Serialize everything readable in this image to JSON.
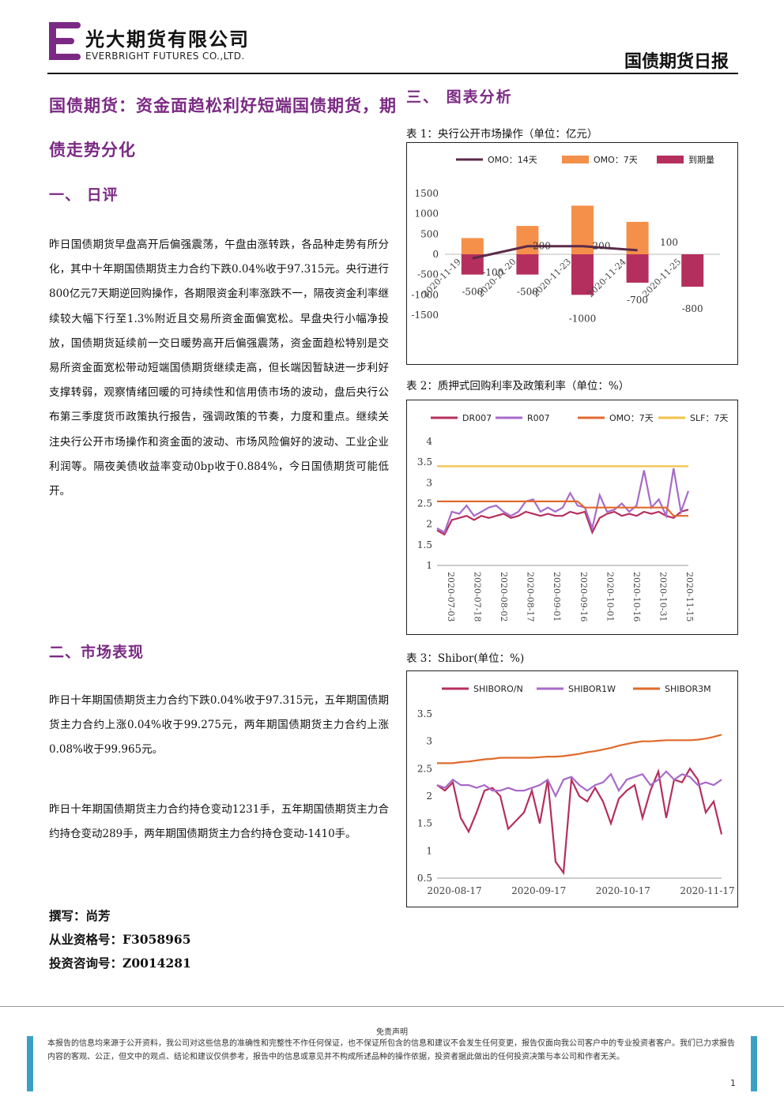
{
  "header": {
    "company_cn": "光大期货有限公司",
    "company_en": "EVERBRIGHT FUTURES CO.,LTD.",
    "report_name": "国债期货日报",
    "logo_name": "everbright-logo"
  },
  "headline": "国债期货：资金面趋松利好短端国债期货，期债走势分化",
  "section1": {
    "title": "一、  日评",
    "body": "昨日国债期货早盘高开后偏强震荡，午盘由涨转跌，各品种走势有所分化，其中十年期国债期货主力合约下跌0.04%收于97.315元。央行进行800亿元7天期逆回购操作，各期限资金利率涨跌不一，隔夜资金利率继续较大幅下行至1.3%附近且交易所资金面偏宽松。早盘央行小幅净投放，国债期货延续前一交日暖势高开后偏强震荡，资金面趋松特别是交易所资金面宽松带动短端国债期货继续走高，但长端因暂缺进一步利好支撑转弱，观察情绪回暖的可持续性和信用债市场的波动，盘后央行公布第三季度货币政策执行报告，强调政策的节奏，力度和重点。继续关注央行公开市场操作和资金面的波动、市场风险偏好的波动、工业企业利润等。隔夜美债收益率变动0bp收于0.884%，今日国债期货可能低开。"
  },
  "section2": {
    "title": "二、市场表现",
    "para1": "昨日十年期国债期货主力合约下跌0.04%收于97.315元，五年期国债期货主力合约上涨0.04%收于99.275元，两年期国债期货主力合约上涨0.08%收于99.965元。",
    "para2": "昨日十年期国债期货主力合约持仓变动1231手，五年期国债期货主力合约持仓变动289手，两年期国债期货主力合约持仓变动-1410手。"
  },
  "byline": {
    "author": "撰写：尚芳",
    "license": "从业资格号：F3058965",
    "consult": "投资咨询号：Z0014281"
  },
  "section3": {
    "title": "三、  图表分析",
    "fig1_caption": "表 1：央行公开市场操作（单位：亿元）",
    "fig2_caption": "表 2：质押式回购利率及政策利率（单位：%）",
    "fig3_caption": "表 3：Shibor(单位：%)"
  },
  "chart_data": [
    {
      "type": "bar",
      "title": "",
      "categories": [
        "2020-11-19",
        "2020-11-20",
        "2020-11-23",
        "2020-11-24",
        "2020-11-25"
      ],
      "series": [
        {
          "name": "OMO：14天",
          "kind": "line",
          "values": [
            -100,
            200,
            200,
            100,
            null
          ],
          "color": "#5b2a4a"
        },
        {
          "name": "OMO：7天",
          "kind": "bar",
          "values": [
            400,
            700,
            1200,
            800,
            null
          ],
          "color": "#f5904a"
        },
        {
          "name": "到期量",
          "kind": "bar",
          "values": [
            -500,
            -500,
            -1000,
            -700,
            -800
          ],
          "color": "#b52f5e"
        }
      ],
      "data_labels": [
        "-100",
        "200",
        "200",
        "100",
        "-500",
        "-500",
        "-1000",
        "-700",
        "-800"
      ],
      "ylim": [
        -1500,
        1500
      ],
      "yticks": [
        "1500",
        "1000",
        "500",
        "0",
        "-500",
        "-1000",
        "-1500"
      ],
      "legend": "top"
    },
    {
      "type": "line",
      "title": "",
      "x_ticks": [
        "2020-07-03",
        "2020-07-18",
        "2020-08-02",
        "2020-08-17",
        "2020-09-01",
        "2020-09-16",
        "2020-10-01",
        "2020-10-16",
        "2020-10-31",
        "2020-11-15"
      ],
      "series": [
        {
          "name": "DR007",
          "color": "#b52f5e",
          "values": [
            1.85,
            1.75,
            2.1,
            2.15,
            2.2,
            2.1,
            2.2,
            2.15,
            2.2,
            2.25,
            2.15,
            2.2,
            2.3,
            2.25,
            2.2,
            2.25,
            2.2,
            2.2,
            2.3,
            2.25,
            2.3,
            1.8,
            2.15,
            2.25,
            2.3,
            2.2,
            2.25,
            2.2,
            2.3,
            2.25,
            2.3,
            2.2,
            2.15,
            2.3,
            2.35
          ]
        },
        {
          "name": "R007",
          "color": "#a76bc9",
          "values": [
            1.9,
            1.8,
            2.3,
            2.25,
            2.45,
            2.2,
            2.3,
            2.4,
            2.45,
            2.3,
            2.2,
            2.3,
            2.55,
            2.6,
            2.3,
            2.4,
            2.3,
            2.4,
            2.75,
            2.45,
            2.4,
            1.9,
            2.7,
            2.3,
            2.35,
            2.5,
            2.3,
            2.45,
            3.3,
            2.4,
            2.6,
            2.2,
            3.35,
            2.3,
            2.8
          ]
        },
        {
          "name": "OMO：7天",
          "color": "#e06a2c",
          "values": [
            2.55,
            2.55,
            2.55,
            2.55,
            2.55,
            2.55,
            2.55,
            2.55,
            2.55,
            2.55,
            2.55,
            2.55,
            2.55,
            2.55,
            2.55,
            2.55,
            2.55,
            2.55,
            2.55,
            2.55,
            2.4,
            2.4,
            2.4,
            2.4,
            2.4,
            2.4,
            2.4,
            2.4,
            2.4,
            2.4,
            2.4,
            2.4,
            2.2,
            2.2,
            2.2
          ]
        },
        {
          "name": "SLF：7天",
          "color": "#f2c24a",
          "values": [
            3.4,
            3.4,
            3.4,
            3.4,
            3.4,
            3.4,
            3.4,
            3.4,
            3.4,
            3.4,
            3.4,
            3.4,
            3.4,
            3.4,
            3.4,
            3.4,
            3.4,
            3.4,
            3.4,
            3.4,
            3.4,
            3.4,
            3.4,
            3.4,
            3.4,
            3.4,
            3.4,
            3.4,
            3.4,
            3.4,
            3.4,
            3.4,
            3.4,
            3.4,
            3.4
          ]
        }
      ],
      "ylim": [
        1,
        4
      ],
      "yticks": [
        "4",
        "3.5",
        "3",
        "2.5",
        "2",
        "1.5",
        "1"
      ],
      "legend": "top"
    },
    {
      "type": "line",
      "title": "",
      "x_ticks": [
        "2020-08-17",
        "2020-09-17",
        "2020-10-17",
        "2020-11-17"
      ],
      "series": [
        {
          "name": "SHIBORO/N",
          "color": "#b52f5e",
          "values": [
            2.2,
            2.1,
            2.25,
            1.6,
            1.35,
            1.7,
            2.1,
            2.15,
            2.0,
            1.4,
            1.55,
            1.7,
            2.1,
            1.5,
            2.3,
            0.8,
            0.6,
            2.3,
            2.0,
            1.9,
            2.15,
            1.9,
            1.5,
            1.95,
            2.1,
            2.2,
            1.6,
            2.1,
            2.45,
            1.6,
            2.3,
            2.25,
            2.5,
            2.3,
            1.7,
            1.9,
            1.3
          ]
        },
        {
          "name": "SHIBOR1W",
          "color": "#a76bc9",
          "values": [
            2.2,
            2.15,
            2.3,
            2.2,
            2.2,
            2.15,
            2.2,
            2.1,
            2.1,
            2.15,
            2.1,
            2.1,
            2.15,
            2.2,
            2.3,
            2.0,
            2.3,
            2.35,
            2.2,
            2.1,
            2.2,
            2.25,
            2.4,
            2.1,
            2.3,
            2.35,
            2.4,
            2.2,
            2.3,
            2.45,
            2.3,
            2.4,
            2.35,
            2.2,
            2.25,
            2.2,
            2.3
          ]
        },
        {
          "name": "SHIBOR3M",
          "color": "#e06a2c",
          "values": [
            2.6,
            2.6,
            2.6,
            2.62,
            2.63,
            2.65,
            2.67,
            2.68,
            2.7,
            2.7,
            2.7,
            2.7,
            2.7,
            2.71,
            2.72,
            2.72,
            2.73,
            2.75,
            2.77,
            2.8,
            2.82,
            2.85,
            2.88,
            2.92,
            2.95,
            2.98,
            3.0,
            3.0,
            3.01,
            3.02,
            3.02,
            3.02,
            3.02,
            3.03,
            3.05,
            3.08,
            3.12
          ]
        }
      ],
      "ylim": [
        0.5,
        3.5
      ],
      "yticks": [
        "3.5",
        "3",
        "2.5",
        "2",
        "1.5",
        "1",
        "0.5"
      ],
      "legend": "top"
    }
  ],
  "footer": {
    "disclaimer_title": "免责声明",
    "disclaimer_body": "本报告的信息均来源于公开资料，我公司对这些信息的准确性和完整性不作任何保证，也不保证所包含的信息和建议不会发生任何变更，报告仅面向我公司客户中的专业投资者客户。我们已力求报告内容的客观、公正，但文中的观点、结论和建议仅供参考，报告中的信息或意见并不构成所述品种的操作依据，投资者据此做出的任何投资决策与本公司和作者无关。",
    "page_number": "1"
  }
}
